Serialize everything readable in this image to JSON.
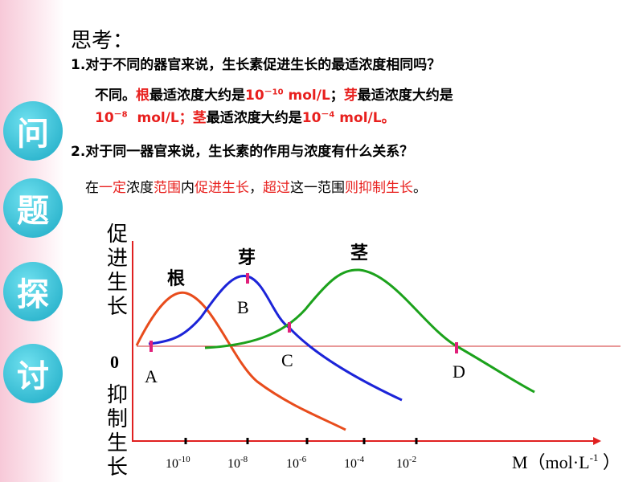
{
  "header": {
    "title": "思考："
  },
  "questions": [
    {
      "text": "1.对于不同的器官来说，生长素促进生长的最适浓度相同吗？",
      "answer_lines": [
        [
          {
            "text": "不同。",
            "color": "#000000"
          },
          {
            "text": "根",
            "color": "#e8201e"
          },
          {
            "text": "最适浓度大约是",
            "color": "#000000"
          },
          {
            "text": "10",
            "color": "#e8201e"
          },
          {
            "text": "－10",
            "color": "#e8201e",
            "sup": true
          },
          {
            "text": " mol/L",
            "color": "#e8201e"
          },
          {
            "text": "；",
            "color": "#000000"
          },
          {
            "text": "芽",
            "color": "#e8201e"
          },
          {
            "text": "最适浓度大约是",
            "color": "#000000"
          }
        ],
        [
          {
            "text": "10",
            "color": "#e8201e"
          },
          {
            "text": "－8",
            "color": "#e8201e",
            "sup": true
          },
          {
            "text": "  mol/L；",
            "color": "#e8201e"
          },
          {
            "text": "茎",
            "color": "#e8201e"
          },
          {
            "text": "最适浓度大约是",
            "color": "#000000"
          },
          {
            "text": "10",
            "color": "#e8201e"
          },
          {
            "text": "－4",
            "color": "#e8201e",
            "sup": true
          },
          {
            "text": " mol/L。",
            "color": "#e8201e"
          }
        ]
      ]
    },
    {
      "text": "2.对于同一器官来说，生长素的作用与浓度有什么关系？",
      "answer_lines": [
        [
          {
            "text": "在",
            "color": "#000000"
          },
          {
            "text": "一定",
            "color": "#e8201e"
          },
          {
            "text": "浓度",
            "color": "#000000"
          },
          {
            "text": "范围",
            "color": "#e8201e"
          },
          {
            "text": "内",
            "color": "#000000"
          },
          {
            "text": "促进生长",
            "color": "#e8201e"
          },
          {
            "text": "，",
            "color": "#000000"
          },
          {
            "text": "超过",
            "color": "#e8201e"
          },
          {
            "text": "这一范围",
            "color": "#000000"
          },
          {
            "text": "则抑制生长",
            "color": "#e8201e"
          },
          {
            "text": "。",
            "color": "#000000"
          }
        ]
      ]
    }
  ],
  "side_label": [
    "问",
    "题",
    "探",
    "讨"
  ],
  "diagram": {
    "y_label_top": "促进生长",
    "zero": "0",
    "y_label_bottom": "抑制生长",
    "curve_labels": [
      "根",
      "芽",
      "茎"
    ],
    "points": [
      "A",
      "B",
      "C",
      "D"
    ],
    "x_ticks": [
      {
        "base": "10",
        "exp": "-10"
      },
      {
        "base": "10",
        "exp": "-8"
      },
      {
        "base": "10",
        "exp": "-6"
      },
      {
        "base": "10",
        "exp": "-4"
      },
      {
        "base": "10",
        "exp": "-2"
      }
    ],
    "x_label": {
      "text": "M（mol·L",
      "exp": "-1",
      "end": " ）"
    }
  }
}
